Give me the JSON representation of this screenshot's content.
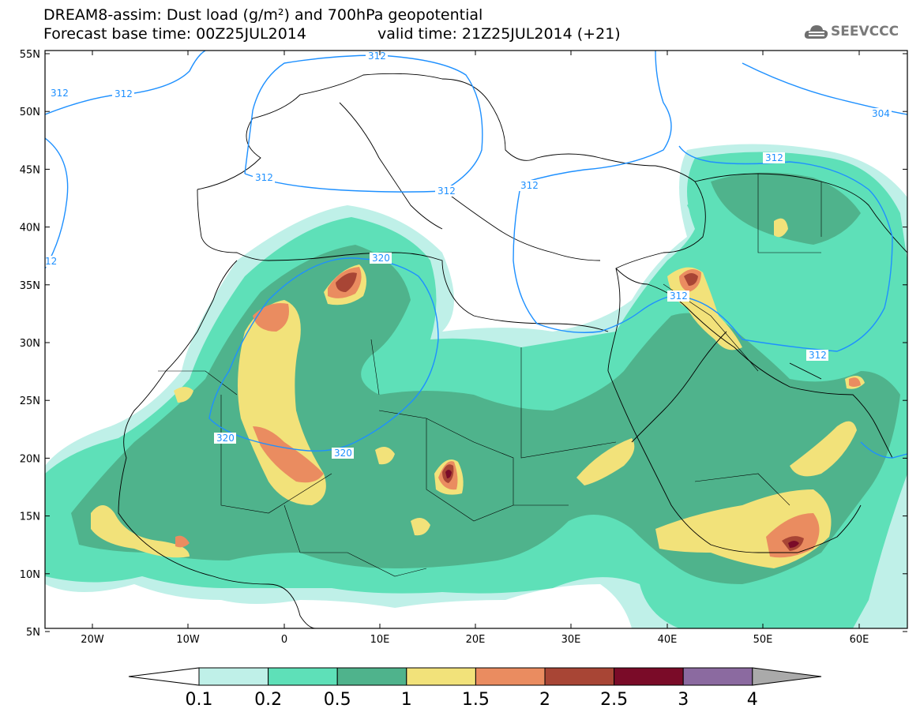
{
  "header": {
    "line1": "DREAM8-assim: Dust load (g/m²) and 700hPa geopotential",
    "line2": "Forecast base time: 00Z25JUL2014",
    "valid": "valid time: 21Z25JUL2014 (+21)"
  },
  "logo": {
    "text": "SEEVCCC",
    "icon": "cloud-icon"
  },
  "axes": {
    "lon_ticks": [
      "20W",
      "10W",
      "0",
      "10E",
      "20E",
      "30E",
      "40E",
      "50E",
      "60E"
    ],
    "lat_ticks": [
      "55N",
      "50N",
      "45N",
      "40N",
      "35N",
      "30N",
      "25N",
      "20N",
      "15N",
      "10N",
      "5N"
    ]
  },
  "contour_labels": [
    "312",
    "312",
    "312",
    "312",
    "312",
    "312",
    "304",
    "312",
    "320",
    "320",
    "320",
    "312",
    "312",
    "12"
  ],
  "colorbar": {
    "labels": [
      "0.1",
      "0.2",
      "0.5",
      "1",
      "1.5",
      "2",
      "2.5",
      "3",
      "4"
    ],
    "colors": [
      "#bff0e8",
      "#5ee0b8",
      "#4fb38c",
      "#f2e27a",
      "#ea8c60",
      "#a84535",
      "#7a0b28",
      "#8b6aa0"
    ],
    "max_color": "#aaaaaa",
    "min_color": "#ffffff"
  },
  "dust_colors": {
    "c01": "#bff0e8",
    "c02": "#5ee0b8",
    "c05": "#4fb38c",
    "c1": "#f2e27a",
    "c15": "#ea8c60",
    "c2": "#a84535",
    "c25": "#7a0b28"
  },
  "contour_color": "#1e90ff"
}
